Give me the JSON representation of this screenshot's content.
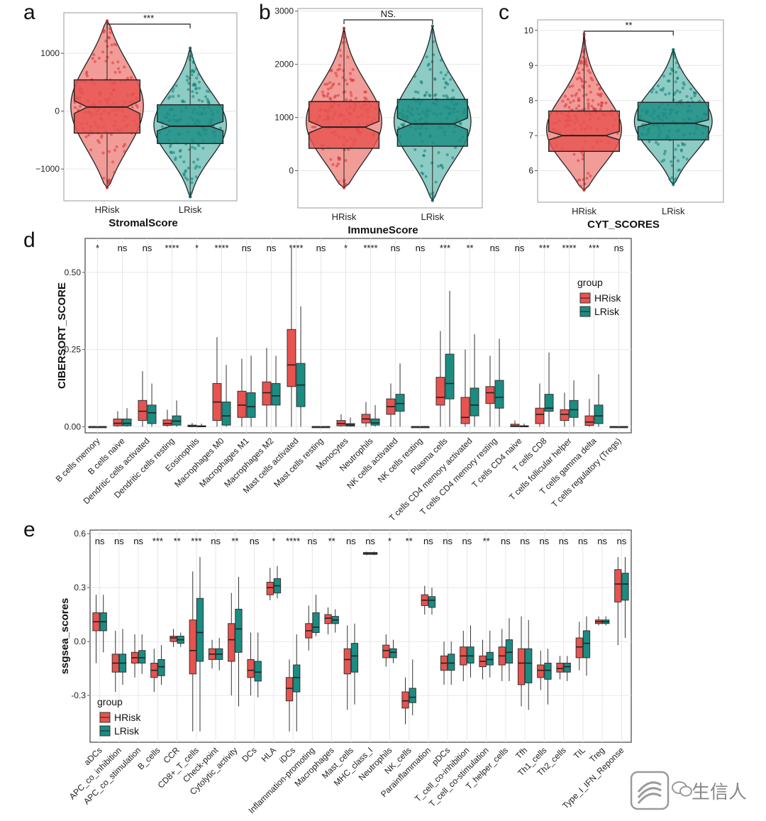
{
  "colors": {
    "HRisk": "#e8534f",
    "LRisk": "#1b8c82",
    "HRiskLight": "#f29c98",
    "LRiskLight": "#8cccc5",
    "grid": "#e6e6e6",
    "frame": "#444444"
  },
  "watermark": {
    "text": "生信人",
    "icon": "wechat-logo-icon"
  },
  "chart_data": [
    {
      "panel": "a",
      "type": "violin-box",
      "ylabel": "",
      "xlabel": "StromalScore",
      "categories": [
        "HRisk",
        "LRisk"
      ],
      "ylim": [
        -1550,
        1700
      ],
      "yticks": [
        -1000,
        0,
        1000
      ],
      "significance": {
        "label": "***"
      },
      "groups": [
        {
          "name": "HRisk",
          "min": -1320,
          "q1": -380,
          "median": 70,
          "q3": 540,
          "max": 1560,
          "notch": 110
        },
        {
          "name": "LRisk",
          "min": -1480,
          "q1": -560,
          "median": -260,
          "q3": 110,
          "max": 1090,
          "notch": 80
        }
      ]
    },
    {
      "panel": "b",
      "type": "violin-box",
      "ylabel": "",
      "xlabel": "ImmuneScore",
      "categories": [
        "HRisk",
        "LRisk"
      ],
      "ylim": [
        -700,
        3050
      ],
      "yticks": [
        0,
        1000,
        2000,
        3000
      ],
      "significance": {
        "label": "NS."
      },
      "groups": [
        {
          "name": "HRisk",
          "min": -320,
          "q1": 420,
          "median": 820,
          "q3": 1300,
          "max": 2680,
          "notch": 110
        },
        {
          "name": "LRisk",
          "min": -560,
          "q1": 460,
          "median": 880,
          "q3": 1340,
          "max": 2720,
          "notch": 110
        }
      ]
    },
    {
      "panel": "c",
      "type": "violin-box",
      "ylabel": "",
      "xlabel": "CYT_SCORES",
      "categories": [
        "HRisk",
        "LRisk"
      ],
      "ylim": [
        5.1,
        10.3
      ],
      "yticks": [
        6,
        7,
        8,
        9,
        10
      ],
      "significance": {
        "label": "**"
      },
      "groups": [
        {
          "name": "HRisk",
          "min": 5.45,
          "q1": 6.55,
          "median": 7.0,
          "q3": 7.7,
          "max": 9.9,
          "notch": 0.12
        },
        {
          "name": "LRisk",
          "min": 5.6,
          "q1": 6.88,
          "median": 7.35,
          "q3": 7.95,
          "max": 9.45,
          "notch": 0.1
        }
      ]
    },
    {
      "panel": "d",
      "type": "boxplot",
      "ylabel": "CIBERSORT_SCORE",
      "ylim": [
        -0.02,
        0.61
      ],
      "yticks": [
        0.0,
        0.25,
        0.5
      ],
      "ytick_labels": [
        "0.00",
        "0.25",
        "0.50"
      ],
      "legend": {
        "title": "group",
        "entries": [
          "HRisk",
          "LRisk"
        ],
        "position": "top-right"
      },
      "categories": [
        "B cells memory",
        "B cells naive",
        "Dendritic cells activated",
        "Dendritic cells resting",
        "Eosinophils",
        "Macrophages M0",
        "Macrophages M1",
        "Macrophages M2",
        "Mast cells activated",
        "Mast cells resting",
        "Monocytes",
        "Neutrophils",
        "NK cells activated",
        "NK cells resting",
        "Plasma cells",
        "T cells CD4 memory activated",
        "T cells CD4 memory resting",
        "T cells CD4 naive",
        "T cells CD8",
        "T cells follicular helper",
        "T cells gamma delta",
        "T cells regulatory (Tregs)"
      ],
      "significance": [
        "*",
        "ns",
        "ns",
        "****",
        "*",
        "****",
        "ns",
        "ns",
        "****",
        "ns",
        "*",
        "****",
        "ns",
        "ns",
        "***",
        "**",
        "ns",
        "ns",
        "***",
        "****",
        "***",
        "ns"
      ],
      "series": [
        {
          "name": "HRisk",
          "boxes": [
            [
              0,
              0,
              0,
              0,
              0
            ],
            [
              0,
              0.003,
              0.011,
              0.025,
              0.05
            ],
            [
              0,
              0.02,
              0.05,
              0.085,
              0.18
            ],
            [
              0,
              0.004,
              0.01,
              0.022,
              0.055
            ],
            [
              0,
              0,
              0.002,
              0.005,
              0.012
            ],
            [
              0,
              0.02,
              0.08,
              0.14,
              0.29
            ],
            [
              0,
              0.03,
              0.07,
              0.115,
              0.22
            ],
            [
              0,
              0.07,
              0.11,
              0.145,
              0.255
            ],
            [
              0,
              0.13,
              0.2,
              0.315,
              0.58
            ],
            [
              0,
              0,
              0,
              0,
              0
            ],
            [
              0,
              0.003,
              0.01,
              0.02,
              0.04
            ],
            [
              0,
              0.012,
              0.025,
              0.04,
              0.08
            ],
            [
              0,
              0.04,
              0.065,
              0.09,
              0.14
            ],
            [
              0,
              0,
              0,
              0,
              0
            ],
            [
              0,
              0.07,
              0.095,
              0.16,
              0.31
            ],
            [
              0,
              0.01,
              0.03,
              0.095,
              0.25
            ],
            [
              0,
              0.075,
              0.11,
              0.13,
              0.23
            ],
            [
              0,
              0,
              0.002,
              0.008,
              0.02
            ],
            [
              0,
              0.01,
              0.04,
              0.06,
              0.14
            ],
            [
              0,
              0.02,
              0.04,
              0.055,
              0.11
            ],
            [
              0,
              0.004,
              0.015,
              0.035,
              0.09
            ],
            [
              0,
              0,
              0,
              0,
              0
            ]
          ]
        },
        {
          "name": "LRisk",
          "boxes": [
            [
              0,
              0,
              0,
              0,
              0
            ],
            [
              0,
              0.003,
              0.011,
              0.025,
              0.06
            ],
            [
              0,
              0.01,
              0.045,
              0.07,
              0.14
            ],
            [
              0,
              0.005,
              0.018,
              0.035,
              0.085
            ],
            [
              0,
              0,
              0.001,
              0.003,
              0.01
            ],
            [
              0,
              0.005,
              0.035,
              0.08,
              0.2
            ],
            [
              0,
              0.03,
              0.065,
              0.11,
              0.23
            ],
            [
              0,
              0.07,
              0.1,
              0.14,
              0.23
            ],
            [
              0,
              0.065,
              0.135,
              0.205,
              0.39
            ],
            [
              0,
              0,
              0,
              0,
              0
            ],
            [
              0,
              0.002,
              0.006,
              0.01,
              0.03
            ],
            [
              0,
              0.005,
              0.012,
              0.025,
              0.07
            ],
            [
              0,
              0.05,
              0.075,
              0.105,
              0.205
            ],
            [
              0,
              0,
              0,
              0,
              0
            ],
            [
              0,
              0.09,
              0.14,
              0.235,
              0.44
            ],
            [
              0,
              0.035,
              0.07,
              0.125,
              0.3
            ],
            [
              0,
              0.06,
              0.095,
              0.15,
              0.285
            ],
            [
              0,
              0,
              0.001,
              0.003,
              0.01
            ],
            [
              0,
              0.05,
              0.06,
              0.105,
              0.24
            ],
            [
              0,
              0.03,
              0.055,
              0.085,
              0.15
            ],
            [
              0,
              0.01,
              0.035,
              0.07,
              0.17
            ],
            [
              0,
              0,
              0,
              0,
              0
            ]
          ]
        }
      ]
    },
    {
      "panel": "e",
      "type": "boxplot",
      "ylabel": "ssgsea_scores",
      "ylim": [
        -0.56,
        0.62
      ],
      "yticks": [
        -0.3,
        0.0,
        0.3,
        0.6
      ],
      "ytick_labels": [
        "-0.3",
        "0.0",
        "0.3",
        "0.6"
      ],
      "legend": {
        "title": "group",
        "entries": [
          "HRisk",
          "LRisk"
        ],
        "position": "bottom-left"
      },
      "categories": [
        "aDCs",
        "APC_co_inhibition",
        "APC_co_stimulation",
        "B_cells",
        "CCR",
        "CD8+_T_cells",
        "Check-point",
        "Cytolytic_activity",
        "DCs",
        "HLA",
        "iDCs",
        "Inflammation-promoting",
        "Macrophages",
        "Mast_cells",
        "MHC_class_I",
        "Neutrophils",
        "NK_cells",
        "Parainflammation",
        "pDCs",
        "T_cell_co-inhibition",
        "T_cell_co-stimulation",
        "T_helper_cells",
        "Tfh",
        "Th1_cells",
        "Th2_cells",
        "TIL",
        "Treg",
        "Type_I_IFN_Reponse"
      ],
      "significance": [
        "ns",
        "ns",
        "ns",
        "***",
        "**",
        "***",
        "ns",
        "**",
        "ns",
        "*",
        "****",
        "ns",
        "**",
        "ns",
        "ns",
        "*",
        "**",
        "ns",
        "ns",
        "ns",
        "**",
        "ns",
        "ns",
        "ns",
        "ns",
        "ns",
        "ns",
        "ns"
      ],
      "series": [
        {
          "name": "HRisk",
          "boxes": [
            [
              -0.12,
              0.06,
              0.11,
              0.16,
              0.26
            ],
            [
              -0.28,
              -0.17,
              -0.12,
              -0.07,
              0.06
            ],
            [
              -0.2,
              -0.12,
              -0.09,
              -0.06,
              0.04
            ],
            [
              -0.28,
              -0.2,
              -0.16,
              -0.12,
              -0.04
            ],
            [
              -0.03,
              0.0,
              0.02,
              0.03,
              0.07
            ],
            [
              -0.5,
              -0.18,
              -0.05,
              0.12,
              0.39
            ],
            [
              -0.15,
              -0.1,
              -0.07,
              -0.04,
              0.01
            ],
            [
              -0.3,
              -0.11,
              0.01,
              0.1,
              0.27
            ],
            [
              -0.3,
              -0.2,
              -0.16,
              -0.1,
              0.05
            ],
            [
              0.23,
              0.26,
              0.3,
              0.33,
              0.41
            ],
            [
              -0.5,
              -0.33,
              -0.26,
              -0.2,
              -0.1
            ],
            [
              -0.05,
              0.02,
              0.06,
              0.1,
              0.2
            ],
            [
              0.04,
              0.1,
              0.13,
              0.15,
              0.19
            ],
            [
              -0.38,
              -0.18,
              -0.1,
              -0.04,
              0.09
            ],
            [
              0.48,
              0.485,
              0.49,
              0.495,
              0.5
            ],
            [
              -0.14,
              -0.09,
              -0.05,
              -0.02,
              0.04
            ],
            [
              -0.46,
              -0.37,
              -0.33,
              -0.28,
              -0.2
            ],
            [
              0.15,
              0.2,
              0.23,
              0.26,
              0.31
            ],
            [
              -0.24,
              -0.16,
              -0.12,
              -0.08,
              0.0
            ],
            [
              -0.22,
              -0.13,
              -0.08,
              -0.03,
              0.06
            ],
            [
              -0.21,
              -0.14,
              -0.11,
              -0.08,
              0.01
            ],
            [
              -0.22,
              -0.13,
              -0.08,
              -0.03,
              0.07
            ],
            [
              -0.36,
              -0.24,
              -0.12,
              -0.04,
              0.14
            ],
            [
              -0.27,
              -0.2,
              -0.16,
              -0.13,
              -0.05
            ],
            [
              -0.21,
              -0.17,
              -0.15,
              -0.12,
              -0.08
            ],
            [
              -0.16,
              -0.09,
              -0.03,
              0.02,
              0.11
            ],
            [
              0.09,
              0.1,
              0.11,
              0.12,
              0.14
            ],
            [
              -0.02,
              0.22,
              0.32,
              0.4,
              0.47
            ]
          ]
        },
        {
          "name": "LRisk",
          "boxes": [
            [
              -0.06,
              0.06,
              0.11,
              0.16,
              0.26
            ],
            [
              -0.24,
              -0.17,
              -0.12,
              -0.07,
              0.07
            ],
            [
              -0.18,
              -0.12,
              -0.09,
              -0.05,
              0.04
            ],
            [
              -0.24,
              -0.19,
              -0.14,
              -0.1,
              -0.02
            ],
            [
              -0.03,
              -0.01,
              0.01,
              0.03,
              0.05
            ],
            [
              -0.5,
              -0.11,
              0.05,
              0.24,
              0.47
            ],
            [
              -0.16,
              -0.1,
              -0.07,
              -0.04,
              0.02
            ],
            [
              -0.36,
              -0.06,
              0.07,
              0.18,
              0.36
            ],
            [
              -0.31,
              -0.22,
              -0.17,
              -0.11,
              0.05
            ],
            [
              0.24,
              0.27,
              0.31,
              0.35,
              0.42
            ],
            [
              -0.5,
              -0.28,
              -0.2,
              -0.13,
              0.04
            ],
            [
              0.03,
              0.05,
              0.08,
              0.16,
              0.26
            ],
            [
              0.05,
              0.1,
              0.12,
              0.14,
              0.18
            ],
            [
              -0.35,
              -0.17,
              -0.08,
              -0.01,
              0.1
            ],
            [
              0.48,
              0.485,
              0.49,
              0.495,
              0.5
            ],
            [
              -0.12,
              -0.09,
              -0.06,
              -0.04,
              0.01
            ],
            [
              -0.41,
              -0.34,
              -0.31,
              -0.26,
              -0.1
            ],
            [
              0.15,
              0.19,
              0.23,
              0.25,
              0.3
            ],
            [
              -0.24,
              -0.16,
              -0.12,
              -0.07,
              0.0
            ],
            [
              -0.2,
              -0.12,
              -0.08,
              -0.03,
              0.09
            ],
            [
              -0.2,
              -0.13,
              -0.1,
              -0.06,
              0.06
            ],
            [
              -0.22,
              -0.12,
              -0.06,
              0.01,
              0.13
            ],
            [
              -0.38,
              -0.23,
              -0.12,
              -0.04,
              0.12
            ],
            [
              -0.35,
              -0.21,
              -0.16,
              -0.12,
              -0.04
            ],
            [
              -0.22,
              -0.17,
              -0.14,
              -0.12,
              -0.08
            ],
            [
              -0.19,
              -0.09,
              -0.01,
              0.06,
              0.14
            ],
            [
              0.09,
              0.1,
              0.11,
              0.12,
              0.14
            ],
            [
              0.02,
              0.23,
              0.32,
              0.38,
              0.47
            ]
          ]
        }
      ]
    }
  ]
}
